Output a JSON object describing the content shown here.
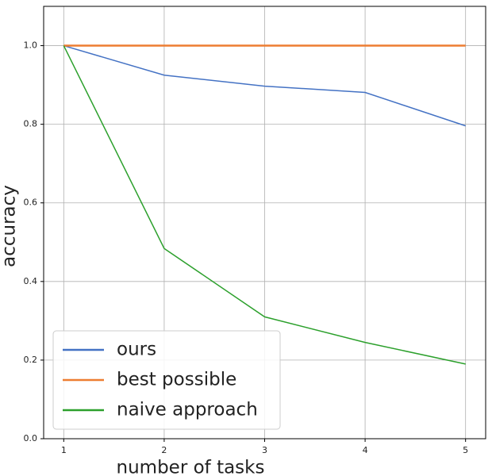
{
  "chart_data": {
    "type": "line",
    "xlabel": "number of tasks",
    "ylabel": "accuracy",
    "x": [
      1,
      2,
      3,
      4,
      5
    ],
    "series": [
      {
        "name": "ours",
        "color": "#4472c4",
        "values": [
          1.0,
          0.925,
          0.897,
          0.881,
          0.796
        ]
      },
      {
        "name": "best possible",
        "color": "#ed7d31",
        "values": [
          1.0,
          1.0,
          1.0,
          1.0,
          1.0
        ]
      },
      {
        "name": "naive approach",
        "color": "#2ca02c",
        "values": [
          1.0,
          0.484,
          0.31,
          0.245,
          0.19
        ]
      }
    ],
    "xlim": [
      0.8,
      5.2
    ],
    "ylim": [
      0,
      1.1
    ],
    "xticks": [
      1,
      2,
      3,
      4,
      5
    ],
    "yticks": [
      {
        "value": 0,
        "label": "0.0"
      },
      {
        "value": 0.2,
        "label": "0.2"
      },
      {
        "value": 0.4,
        "label": "0.4"
      },
      {
        "value": 0.6,
        "label": "0.6"
      },
      {
        "value": 0.8,
        "label": "0.8"
      },
      {
        "value": 1.0,
        "label": "1.0"
      }
    ],
    "grid": true,
    "legend": "lower left"
  }
}
